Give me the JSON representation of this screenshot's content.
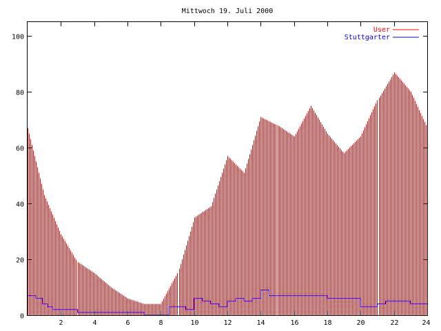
{
  "chart_data": {
    "type": "bar",
    "title": "Mittwoch 19. Juli 2000",
    "xlabel": "",
    "ylabel": "",
    "xlim": [
      0,
      24
    ],
    "ylim": [
      0,
      105
    ],
    "x_ticks": [
      2,
      4,
      6,
      8,
      10,
      12,
      14,
      16,
      18,
      20,
      22,
      24
    ],
    "y_ticks": [
      0,
      20,
      40,
      60,
      80,
      100
    ],
    "legend_position": "top-right",
    "grid": false,
    "colors": {
      "User": "#ff0000",
      "Stuttgarter": "#0000ff"
    },
    "series": [
      {
        "name": "User",
        "type": "bar",
        "x_hours": [
          0,
          1,
          2,
          3,
          4,
          5,
          6,
          7,
          8,
          9,
          10,
          11,
          12,
          13,
          14,
          15,
          16,
          17,
          18,
          19,
          20,
          21,
          22,
          23,
          24
        ],
        "values": [
          67,
          43,
          29,
          19,
          15,
          10,
          6,
          4,
          4,
          15,
          35,
          39,
          57,
          51,
          71,
          68,
          64,
          75,
          65,
          58,
          64,
          77,
          87,
          80,
          67
        ],
        "step_minutes": 5
      },
      {
        "name": "Stuttgarter",
        "type": "line",
        "x": [
          0,
          0.5,
          0.9,
          1.2,
          1.5,
          2,
          2.5,
          3,
          4,
          5,
          6,
          6.9,
          7,
          8,
          8.5,
          9,
          9.5,
          10,
          10.5,
          11,
          11.5,
          12,
          12.5,
          13,
          13.5,
          14,
          14.5,
          15,
          16,
          17,
          18,
          19,
          19.8,
          20,
          21,
          21.5,
          22,
          23,
          24
        ],
        "values": [
          7,
          6,
          4,
          3,
          2,
          2,
          2,
          1,
          1,
          1,
          1,
          1,
          0,
          0,
          3,
          3,
          2,
          6,
          5,
          4,
          3,
          5,
          6,
          5,
          6,
          9,
          7,
          7,
          7,
          7,
          6,
          6,
          6,
          3,
          4,
          5,
          5,
          4,
          4
        ]
      }
    ]
  }
}
